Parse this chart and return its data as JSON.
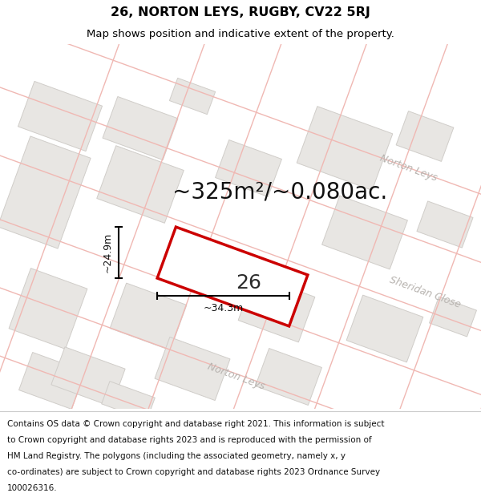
{
  "title": "26, NORTON LEYS, RUGBY, CV22 5RJ",
  "subtitle": "Map shows position and indicative extent of the property.",
  "area_text": "~325m²/~0.080ac.",
  "plot_label": "26",
  "dim_h": "~24.9m",
  "dim_w": "~34.3m",
  "street_label_top": "Norton Leys",
  "street_label_right": "Sheridan Close",
  "street_label_bottom": "Norton Leys",
  "footer_lines": [
    "Contains OS data © Crown copyright and database right 2021. This information is subject",
    "to Crown copyright and database rights 2023 and is reproduced with the permission of",
    "HM Land Registry. The polygons (including the associated geometry, namely x, y",
    "co-ordinates) are subject to Crown copyright and database rights 2023 Ordnance Survey",
    "100026316."
  ],
  "map_bg": "#f5f3f0",
  "block_fill": "#e8e6e3",
  "block_edge": "#d0cdc9",
  "road_line_color": "#f0b8b3",
  "plot_edge_color": "#cc0000",
  "street_label_color": "#b8b4b0",
  "title_fontsize": 11.5,
  "subtitle_fontsize": 9.5,
  "area_fontsize": 20,
  "plot_label_fontsize": 18,
  "footer_fontsize": 7.5,
  "dim_fontsize": 9,
  "street_fontsize": 9
}
